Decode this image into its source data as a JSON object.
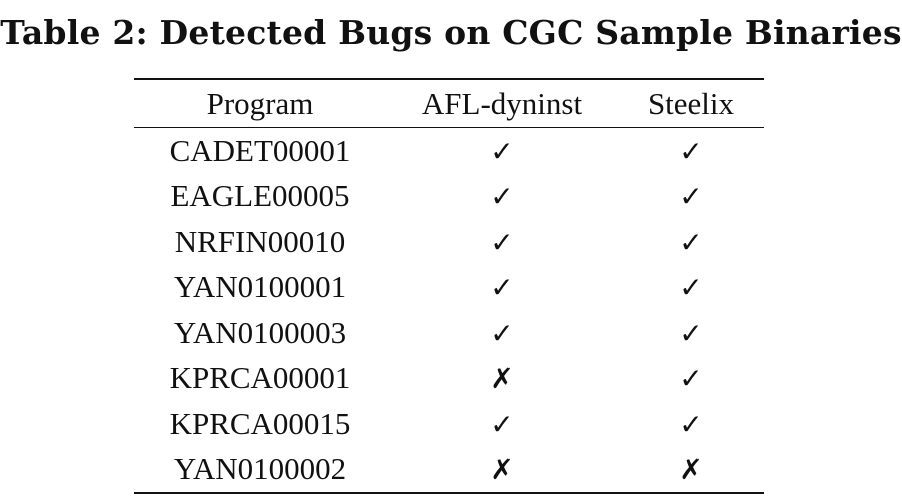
{
  "caption": "Table 2: Detected Bugs on CGC Sample Binaries",
  "table": {
    "headers": [
      "Program",
      "AFL-dyninst",
      "Steelix"
    ],
    "rows": [
      {
        "program": "CADET00001",
        "afl_dyninst": "✓",
        "steelix": "✓"
      },
      {
        "program": "EAGLE00005",
        "afl_dyninst": "✓",
        "steelix": "✓"
      },
      {
        "program": "NRFIN00010",
        "afl_dyninst": "✓",
        "steelix": "✓"
      },
      {
        "program": "YAN0100001",
        "afl_dyninst": "✓",
        "steelix": "✓"
      },
      {
        "program": "YAN0100003",
        "afl_dyninst": "✓",
        "steelix": "✓"
      },
      {
        "program": "KPRCA00001",
        "afl_dyninst": "✗",
        "steelix": "✓"
      },
      {
        "program": "KPRCA00015",
        "afl_dyninst": "✓",
        "steelix": "✓"
      },
      {
        "program": "YAN0100002",
        "afl_dyninst": "✗",
        "steelix": "✗"
      }
    ]
  }
}
